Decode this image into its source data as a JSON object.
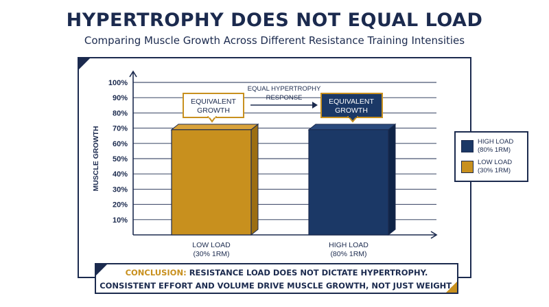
{
  "title": "HYPERTROPHY DOES NOT EQUAL LOAD",
  "subtitle": "Comparing Muscle Growth Across Different Resistance Training Intensities",
  "chart_data": {
    "type": "bar",
    "categories": [
      "LOW LOAD\n(30% 1RM)",
      "HIGH LOAD\n(80% 1RM)"
    ],
    "values": [
      69,
      69
    ],
    "colors": [
      "#c8901e",
      "#1b3866"
    ],
    "ylabel": "MUSCLE GROWTH",
    "xlabel": "",
    "ylim": [
      0,
      100
    ],
    "yticks": [
      "10%",
      "20%",
      "30%",
      "40%",
      "50%",
      "60%",
      "70%",
      "80%",
      "90%",
      "100%"
    ],
    "grid": true,
    "annotations": {
      "low_callout": "EQUIVALENT\nGROWTH",
      "high_callout": "EQUIVALENT\nGROWTH",
      "arrow_label": "EQUAL HYPERTROPHY\nRESPONSE"
    }
  },
  "legend": {
    "placement": "right",
    "items": [
      {
        "label": "HIGH LOAD\n(80% 1RM)",
        "color": "#1b3866"
      },
      {
        "label": "LOW LOAD\n(30% 1RM)",
        "color": "#c8901e"
      }
    ]
  },
  "conclusion": {
    "label": "CONCLUSION:",
    "line1": "RESISTANCE LOAD DOES NOT DICTATE HYPERTROPHY.",
    "line2": "CONSISTENT EFFORT AND VOLUME DRIVE MUSCLE GROWTH, NOT JUST WEIGHT."
  }
}
